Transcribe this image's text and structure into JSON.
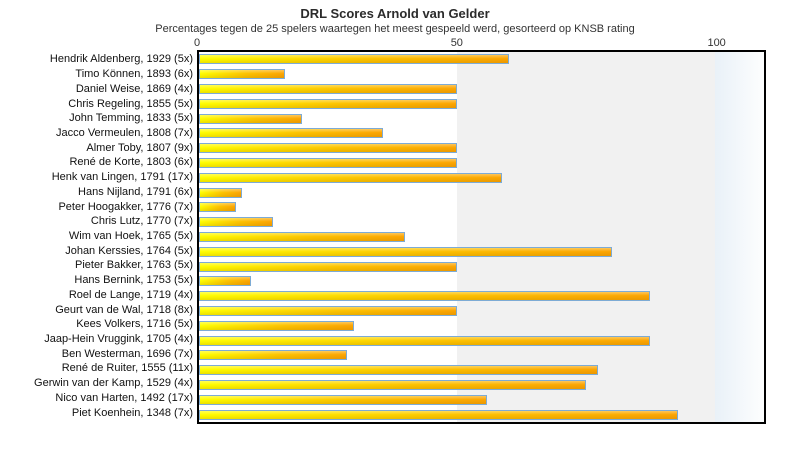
{
  "title": "DRL Scores Arnold van Gelder",
  "subtitle": "Percentages tegen de 25 spelers waartegen het meest gespeeld werd, gesorteerd op KNSB rating",
  "colors": {
    "bar_yellow": "#ffff00",
    "bar_orange": "#fca502",
    "bar_border_blue": "#7dabd5",
    "band_gray": "#f1f1f1",
    "band_over_100": "#e9f1f8",
    "plot_border": "#000000",
    "background": "#ffffff",
    "text": "#222222"
  },
  "chart_data": {
    "type": "bar",
    "orientation": "horizontal",
    "title": "DRL Scores Arnold van Gelder",
    "subtitle": "Percentages tegen de 25 spelers waartegen het meest gespeeld werd, gesorteerd op KNSB rating",
    "xlabel": "",
    "ylabel": "",
    "xlim": [
      0,
      109.5
    ],
    "x_ticks": [
      0,
      50,
      100
    ],
    "x_tick_labels": [
      "0",
      "50",
      "100"
    ],
    "grid": "background bands: white 0-50, gray 50-100, light blue beyond 100",
    "legend_position": "none",
    "categories": [
      "Hendrik Aldenberg, 1929 (5x)",
      "Timo Können, 1893 (6x)",
      "Daniel Weise, 1869 (4x)",
      "Chris Regeling, 1855 (5x)",
      "John Temming, 1833 (5x)",
      "Jacco Vermeulen, 1808 (7x)",
      "Almer Toby, 1807 (9x)",
      "René de Korte, 1803 (6x)",
      "Henk van Lingen, 1791 (17x)",
      "Hans Nijland, 1791 (6x)",
      "Peter Hoogakker, 1776 (7x)",
      "Chris Lutz, 1770 (7x)",
      "Wim van Hoek, 1765 (5x)",
      "Johan Kerssies, 1764 (5x)",
      "Pieter Bakker, 1763 (5x)",
      "Hans Bernink, 1753 (5x)",
      "Roel de Lange, 1719 (4x)",
      "Geurt van de Wal, 1718 (8x)",
      "Kees Volkers, 1716 (5x)",
      "Jaap-Hein Vruggink, 1705 (4x)",
      "Ben Westerman, 1696 (7x)",
      "René de Ruiter, 1555 (11x)",
      "Gerwin van der Kamp, 1529 (4x)",
      "Nico van Harten, 1492 (17x)",
      "Piet Koenhein, 1348 (7x)"
    ],
    "values": [
      60,
      16.7,
      50,
      50,
      20,
      35.7,
      50,
      50,
      58.8,
      8.3,
      7.1,
      14.3,
      40,
      80,
      50,
      10,
      87.5,
      50,
      30,
      87.5,
      28.6,
      77.3,
      75,
      55.9,
      92.9
    ],
    "players": [
      {
        "name": "Hendrik Aldenberg",
        "rating": 1929,
        "games": "5x",
        "percentage": 60
      },
      {
        "name": "Timo Können",
        "rating": 1893,
        "games": "6x",
        "percentage": 16.7
      },
      {
        "name": "Daniel Weise",
        "rating": 1869,
        "games": "4x",
        "percentage": 50
      },
      {
        "name": "Chris Regeling",
        "rating": 1855,
        "games": "5x",
        "percentage": 50
      },
      {
        "name": "John Temming",
        "rating": 1833,
        "games": "5x",
        "percentage": 20
      },
      {
        "name": "Jacco Vermeulen",
        "rating": 1808,
        "games": "7x",
        "percentage": 35.7
      },
      {
        "name": "Almer Toby",
        "rating": 1807,
        "games": "9x",
        "percentage": 50
      },
      {
        "name": "René de Korte",
        "rating": 1803,
        "games": "6x",
        "percentage": 50
      },
      {
        "name": "Henk van Lingen",
        "rating": 1791,
        "games": "17x",
        "percentage": 58.8
      },
      {
        "name": "Hans Nijland",
        "rating": 1791,
        "games": "6x",
        "percentage": 8.3
      },
      {
        "name": "Peter Hoogakker",
        "rating": 1776,
        "games": "7x",
        "percentage": 7.1
      },
      {
        "name": "Chris Lutz",
        "rating": 1770,
        "games": "7x",
        "percentage": 14.3
      },
      {
        "name": "Wim van Hoek",
        "rating": 1765,
        "games": "5x",
        "percentage": 40
      },
      {
        "name": "Johan Kerssies",
        "rating": 1764,
        "games": "5x",
        "percentage": 80
      },
      {
        "name": "Pieter Bakker",
        "rating": 1763,
        "games": "5x",
        "percentage": 50
      },
      {
        "name": "Hans Bernink",
        "rating": 1753,
        "games": "5x",
        "percentage": 10
      },
      {
        "name": "Roel de Lange",
        "rating": 1719,
        "games": "4x",
        "percentage": 87.5
      },
      {
        "name": "Geurt van de Wal",
        "rating": 1718,
        "games": "8x",
        "percentage": 50
      },
      {
        "name": "Kees Volkers",
        "rating": 1716,
        "games": "5x",
        "percentage": 30
      },
      {
        "name": "Jaap-Hein Vruggink",
        "rating": 1705,
        "games": "4x",
        "percentage": 87.5
      },
      {
        "name": "Ben Westerman",
        "rating": 1696,
        "games": "7x",
        "percentage": 28.6
      },
      {
        "name": "René de Ruiter",
        "rating": 1555,
        "games": "11x",
        "percentage": 77.3
      },
      {
        "name": "Gerwin van der Kamp",
        "rating": 1529,
        "games": "4x",
        "percentage": 75
      },
      {
        "name": "Nico van Harten",
        "rating": 1492,
        "games": "17x",
        "percentage": 55.9
      },
      {
        "name": "Piet Koenhein",
        "rating": 1348,
        "games": "7x",
        "percentage": 92.9
      }
    ]
  }
}
